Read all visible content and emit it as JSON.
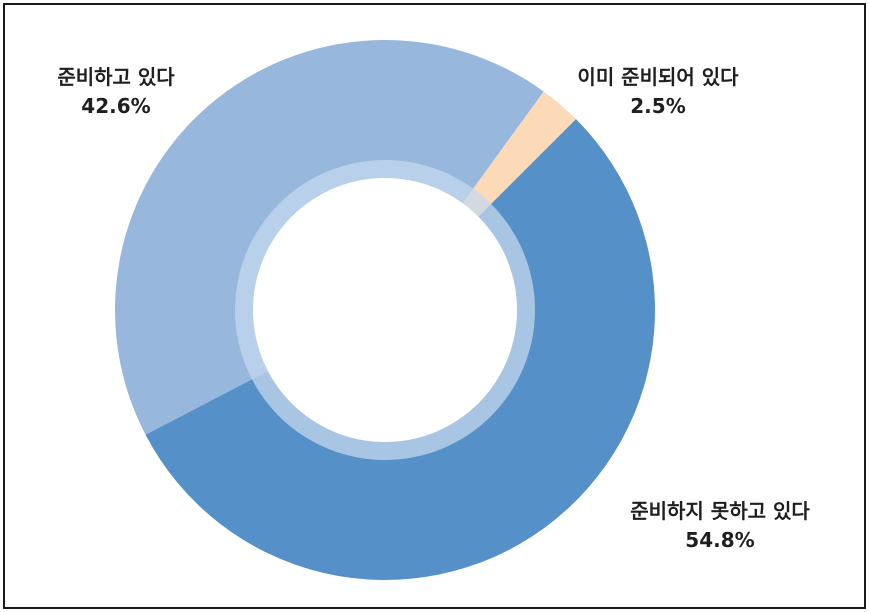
{
  "chart_data": {
    "type": "pie",
    "title": "",
    "series": [
      {
        "values": [
          42.6,
          2.5,
          54.8
        ],
        "categories": [
          "준비하고 있다",
          "이미 준비되어 있다",
          "준비하지 못하고 있다"
        ],
        "percent_labels": [
          "42.6%",
          "2.5%",
          "54.8%"
        ]
      }
    ],
    "colors": [
      "#98b7dd",
      "#fcd9b7",
      "#5590c8"
    ],
    "inner_ring_color": "#c4d8ee"
  }
}
